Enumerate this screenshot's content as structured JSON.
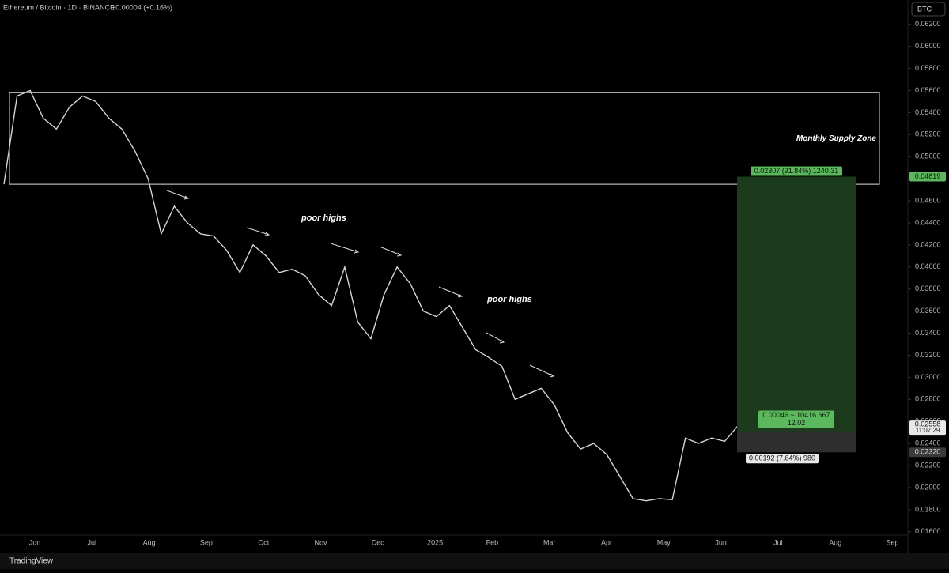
{
  "header": {
    "symbol": "Ethereum / Bitcoin · 1D · BINANCE",
    "change": "+0.00004 (+0.16%)",
    "currency": "BTC"
  },
  "footer": {
    "brand": "TradingView"
  },
  "chart_data": {
    "type": "line",
    "color": "#d6d6d6",
    "x_labels": [
      "Jun",
      "Jul",
      "Aug",
      "Sep",
      "Oct",
      "Nov",
      "Dec",
      "2025",
      "Feb",
      "Mar",
      "Apr",
      "May",
      "Jun",
      "Jul",
      "Aug",
      "Sep"
    ],
    "values": [
      0.0475,
      0.0555,
      0.056,
      0.0535,
      0.0525,
      0.0545,
      0.0555,
      0.055,
      0.0535,
      0.0525,
      0.0505,
      0.048,
      0.043,
      0.0455,
      0.044,
      0.043,
      0.0428,
      0.0415,
      0.0395,
      0.042,
      0.041,
      0.0395,
      0.0398,
      0.0392,
      0.0375,
      0.0365,
      0.04,
      0.035,
      0.0335,
      0.0375,
      0.04,
      0.0385,
      0.036,
      0.0355,
      0.0365,
      0.0345,
      0.0325,
      0.0318,
      0.031,
      0.028,
      0.0285,
      0.029,
      0.0275,
      0.025,
      0.0235,
      0.024,
      0.023,
      0.021,
      0.019,
      0.0188,
      0.019,
      0.0189,
      0.0245,
      0.024,
      0.0245,
      0.0242,
      0.0256
    ],
    "ylim": [
      0.0157,
      0.0642
    ],
    "yticks": [
      {
        "value": 0.016,
        "label": "0.01600"
      },
      {
        "value": 0.018,
        "label": "0.01800"
      },
      {
        "value": 0.02,
        "label": "0.02000"
      },
      {
        "value": 0.022,
        "label": "0.02200"
      },
      {
        "value": 0.024,
        "label": "0.02400"
      },
      {
        "value": 0.026,
        "label": "0.02600"
      },
      {
        "value": 0.028,
        "label": "0.02800"
      },
      {
        "value": 0.03,
        "label": "0.03000"
      },
      {
        "value": 0.032,
        "label": "0.03200"
      },
      {
        "value": 0.034,
        "label": "0.03400"
      },
      {
        "value": 0.036,
        "label": "0.03600"
      },
      {
        "value": 0.038,
        "label": "0.03800"
      },
      {
        "value": 0.04,
        "label": "0.04000"
      },
      {
        "value": 0.042,
        "label": "0.04200"
      },
      {
        "value": 0.044,
        "label": "0.04400"
      },
      {
        "value": 0.046,
        "label": "0.04600"
      },
      {
        "value": 0.048,
        "label": "0.04800"
      },
      {
        "value": 0.05,
        "label": "0.05000"
      },
      {
        "value": 0.052,
        "label": "0.05200"
      },
      {
        "value": 0.054,
        "label": "0.05400"
      },
      {
        "value": 0.056,
        "label": "0.05600"
      },
      {
        "value": 0.058,
        "label": "0.05800"
      },
      {
        "value": 0.06,
        "label": "0.06000"
      },
      {
        "value": 0.062,
        "label": "0.06200"
      }
    ],
    "zone": {
      "label": "Monthly Supply Zone",
      "top": 0.0558,
      "bottom": 0.0475
    },
    "annotations": [
      "poor highs",
      "poor highs"
    ],
    "position": {
      "target": 0.04819,
      "entry": 0.02512,
      "stop": {
        "value": 0.0232,
        "label": "0.02320"
      },
      "target_label": "0.02307 (91.84%) 1240.31",
      "mid_label": "0.00046 ~ 10416.667",
      "mid_sub": "12.02",
      "stop_label": "0.00192 (7.64%) 980"
    },
    "last_price": 0.02558,
    "countdown": "11:07:29"
  }
}
